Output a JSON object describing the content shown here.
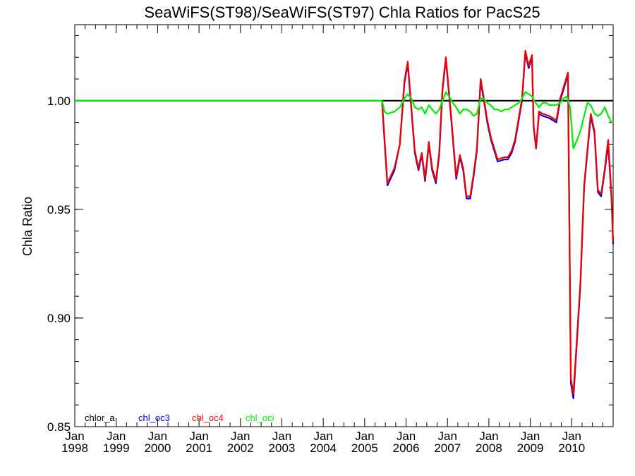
{
  "chart_data": {
    "type": "line",
    "title": "SeaWiFS(ST98)/SeaWiFS(ST97)  Chla Ratios for PacS25",
    "xlabel": "",
    "ylabel": "Chla Ratio",
    "xlim": [
      1998.0,
      2011.0
    ],
    "ylim": [
      0.85,
      1.035
    ],
    "y_ticks": [
      0.85,
      0.9,
      0.95,
      1.0
    ],
    "y_tick_labels": [
      "0.85",
      "0.90",
      "0.95",
      "1.00"
    ],
    "x_ticks": [
      {
        "value": 1998,
        "line1": "Jan",
        "line2": "1998"
      },
      {
        "value": 1999,
        "line1": "Jan",
        "line2": "1999"
      },
      {
        "value": 2000,
        "line1": "Jan",
        "line2": "2000"
      },
      {
        "value": 2001,
        "line1": "Jan",
        "line2": "2001"
      },
      {
        "value": 2002,
        "line1": "Jan",
        "line2": "2002"
      },
      {
        "value": 2003,
        "line1": "Jan",
        "line2": "2003"
      },
      {
        "value": 2004,
        "line1": "Jan",
        "line2": "2004"
      },
      {
        "value": 2005,
        "line1": "Jan",
        "line2": "2005"
      },
      {
        "value": 2006,
        "line1": "Jan",
        "line2": "2006"
      },
      {
        "value": 2007,
        "line1": "Jan",
        "line2": "2007"
      },
      {
        "value": 2008,
        "line1": "Jan",
        "line2": "2008"
      },
      {
        "value": 2009,
        "line1": "Jan",
        "line2": "2009"
      },
      {
        "value": 2010,
        "line1": "Jan",
        "line2": "2010"
      }
    ],
    "reference_line": 1.0,
    "legend_placement": "bottom-left",
    "series": [
      {
        "name": "chlor_a",
        "color": "#000000",
        "x": [
          1998.0,
          2011.0
        ],
        "y": [
          1.0,
          1.0
        ]
      },
      {
        "name": "chl_oc3",
        "color": "#0000dd",
        "x": [
          2005.42,
          2005.55,
          2005.72,
          2005.85,
          2005.96,
          2006.04,
          2006.21,
          2006.3,
          2006.38,
          2006.46,
          2006.55,
          2006.63,
          2006.72,
          2006.8,
          2006.88,
          2006.96,
          2007.06,
          2007.21,
          2007.3,
          2007.38,
          2007.46,
          2007.55,
          2007.63,
          2007.71,
          2007.8,
          2007.88,
          2007.96,
          2008.05,
          2008.21,
          2008.38,
          2008.46,
          2008.55,
          2008.63,
          2008.8,
          2008.88,
          2008.96,
          2009.04,
          2009.08,
          2009.14,
          2009.21,
          2009.3,
          2009.46,
          2009.63,
          2009.72,
          2009.8,
          2009.91,
          2009.98,
          2010.04,
          2010.21,
          2010.3,
          2010.46,
          2010.55,
          2010.63,
          2010.71,
          2010.8,
          2010.88,
          2010.96,
          2011.0
        ],
        "y": [
          0.999,
          0.961,
          0.968,
          0.98,
          1.008,
          1.017,
          0.976,
          0.968,
          0.975,
          0.963,
          0.98,
          0.968,
          0.962,
          0.975,
          1.005,
          1.019,
          0.998,
          0.964,
          0.974,
          0.968,
          0.955,
          0.955,
          0.965,
          0.977,
          1.009,
          1.0,
          0.99,
          0.982,
          0.972,
          0.973,
          0.973,
          0.976,
          0.981,
          1.0,
          1.022,
          1.015,
          1.02,
          0.988,
          0.978,
          0.994,
          0.993,
          0.992,
          0.99,
          1.0,
          1.005,
          1.012,
          0.87,
          0.863,
          0.915,
          0.96,
          0.993,
          0.985,
          0.958,
          0.956,
          0.968,
          0.98,
          0.955,
          0.934
        ]
      },
      {
        "name": "chl_oc4",
        "color": "#ee0000",
        "x": [
          2005.42,
          2005.55,
          2005.72,
          2005.85,
          2005.96,
          2006.04,
          2006.21,
          2006.3,
          2006.38,
          2006.46,
          2006.55,
          2006.63,
          2006.72,
          2006.8,
          2006.88,
          2006.96,
          2007.06,
          2007.21,
          2007.3,
          2007.38,
          2007.46,
          2007.55,
          2007.63,
          2007.71,
          2007.8,
          2007.88,
          2007.96,
          2008.05,
          2008.21,
          2008.38,
          2008.46,
          2008.55,
          2008.63,
          2008.8,
          2008.88,
          2008.96,
          2009.04,
          2009.08,
          2009.14,
          2009.21,
          2009.3,
          2009.46,
          2009.63,
          2009.72,
          2009.8,
          2009.91,
          2009.98,
          2010.04,
          2010.21,
          2010.3,
          2010.46,
          2010.55,
          2010.63,
          2010.71,
          2010.8,
          2010.88,
          2010.96,
          2011.0
        ],
        "y": [
          1.0,
          0.962,
          0.969,
          0.98,
          1.009,
          1.018,
          0.977,
          0.969,
          0.976,
          0.964,
          0.981,
          0.969,
          0.963,
          0.976,
          1.006,
          1.02,
          0.999,
          0.965,
          0.975,
          0.969,
          0.956,
          0.956,
          0.966,
          0.978,
          1.01,
          1.001,
          0.991,
          0.983,
          0.973,
          0.974,
          0.974,
          0.977,
          0.982,
          1.001,
          1.023,
          1.016,
          1.021,
          0.989,
          0.978,
          0.995,
          0.994,
          0.993,
          0.991,
          1.001,
          1.006,
          1.013,
          0.872,
          0.865,
          0.916,
          0.961,
          0.994,
          0.986,
          0.959,
          0.957,
          0.969,
          0.982,
          0.956,
          0.935
        ]
      },
      {
        "name": "chl_oci",
        "color": "#00ee00",
        "x": [
          1998.0,
          2005.42,
          2005.48,
          2005.55,
          2005.72,
          2005.85,
          2005.96,
          2006.04,
          2006.13,
          2006.21,
          2006.3,
          2006.38,
          2006.46,
          2006.55,
          2006.63,
          2006.72,
          2006.8,
          2006.88,
          2006.96,
          2007.04,
          2007.13,
          2007.21,
          2007.3,
          2007.38,
          2007.46,
          2007.55,
          2007.63,
          2007.71,
          2007.8,
          2007.88,
          2007.96,
          2008.04,
          2008.13,
          2008.21,
          2008.3,
          2008.38,
          2008.46,
          2008.55,
          2008.63,
          2008.72,
          2008.8,
          2008.88,
          2008.96,
          2009.04,
          2009.13,
          2009.21,
          2009.3,
          2009.38,
          2009.46,
          2009.55,
          2009.63,
          2009.72,
          2009.8,
          2009.88,
          2009.96,
          2010.04,
          2010.13,
          2010.21,
          2010.3,
          2010.38,
          2010.46,
          2010.55,
          2010.63,
          2010.71,
          2010.8,
          2010.88,
          2010.96,
          2011.0
        ],
        "y": [
          1.0,
          1.0,
          0.995,
          0.994,
          0.995,
          0.997,
          1.001,
          1.003,
          1.001,
          0.997,
          0.996,
          0.997,
          0.994,
          0.998,
          0.996,
          0.994,
          0.996,
          1.0,
          1.004,
          1.002,
          0.999,
          0.997,
          0.994,
          0.996,
          0.996,
          0.995,
          0.993,
          0.994,
          1.001,
          1.001,
          0.999,
          0.998,
          0.996,
          0.996,
          0.995,
          0.996,
          0.996,
          0.997,
          0.998,
          0.999,
          1.001,
          1.004,
          1.003,
          1.002,
          0.999,
          0.997,
          0.999,
          0.999,
          0.998,
          0.998,
          0.998,
          0.999,
          1.001,
          1.002,
          0.997,
          0.978,
          0.982,
          0.986,
          0.993,
          0.999,
          0.998,
          0.994,
          0.993,
          0.994,
          0.997,
          0.993,
          0.99,
          0.99
        ]
      }
    ]
  }
}
